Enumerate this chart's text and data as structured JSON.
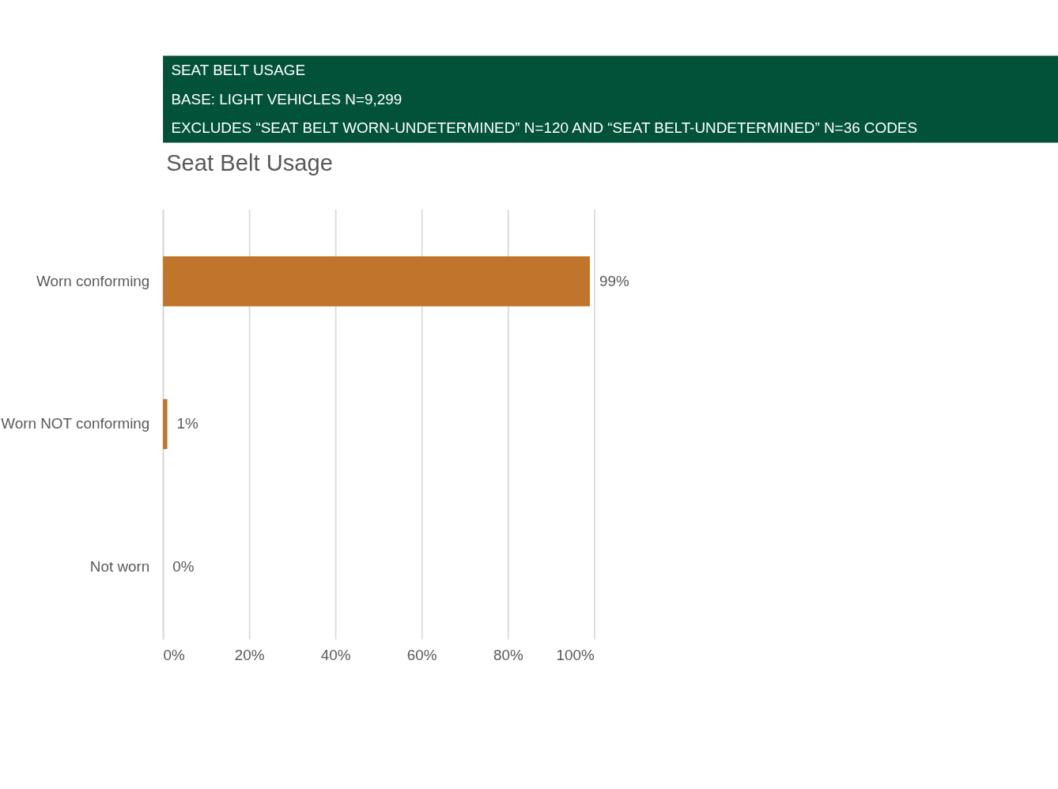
{
  "chart_data": {
    "type": "bar",
    "orientation": "horizontal",
    "title": "Seat Belt Usage",
    "annotations": [
      "SEAT BELT USAGE",
      "BASE: LIGHT VEHICLES N=9,299",
      "EXCLUDES “SEAT BELT WORN-UNDETERMINED” N=120 AND “SEAT BELT-UNDETERMINED” N=36 CODES"
    ],
    "categories": [
      "Worn conforming",
      "Worn NOT conforming",
      "Not worn"
    ],
    "values": [
      99,
      1,
      0
    ],
    "value_labels": [
      "99%",
      "1%",
      "0%"
    ],
    "color": "#c0752a",
    "xlim": [
      0,
      100
    ],
    "xticks": [
      {
        "value": 0,
        "label": "0%"
      },
      {
        "value": 20,
        "label": "20%"
      },
      {
        "value": 40,
        "label": "40%"
      },
      {
        "value": 60,
        "label": "60%"
      },
      {
        "value": 80,
        "label": "80%"
      },
      {
        "value": 100,
        "label": "100%"
      }
    ],
    "grid": "x"
  }
}
